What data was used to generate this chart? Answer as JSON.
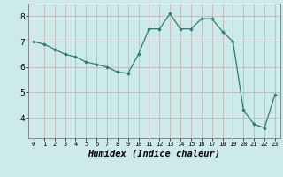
{
  "x": [
    0,
    1,
    2,
    3,
    4,
    5,
    6,
    7,
    8,
    9,
    10,
    11,
    12,
    13,
    14,
    15,
    16,
    17,
    18,
    19,
    20,
    21,
    22,
    23
  ],
  "y": [
    7.0,
    6.9,
    6.7,
    6.5,
    6.4,
    6.2,
    6.1,
    6.0,
    5.8,
    5.75,
    6.5,
    7.5,
    7.5,
    8.1,
    7.5,
    7.5,
    7.9,
    7.9,
    7.4,
    7.0,
    4.3,
    3.75,
    3.6,
    4.9
  ],
  "xlabel": "Humidex (Indice chaleur)",
  "xlim": [
    -0.5,
    23.5
  ],
  "ylim": [
    3.2,
    8.5
  ],
  "yticks": [
    4,
    5,
    6,
    7,
    8
  ],
  "xticks": [
    0,
    1,
    2,
    3,
    4,
    5,
    6,
    7,
    8,
    9,
    10,
    11,
    12,
    13,
    14,
    15,
    16,
    17,
    18,
    19,
    20,
    21,
    22,
    23
  ],
  "line_color": "#2e7d6e",
  "marker": "D",
  "marker_size": 1.8,
  "bg_color": "#cceaea",
  "grid_color": "#c8a8a8",
  "xlabel_fontsize": 7.5,
  "tick_fontsize_x": 5.0,
  "tick_fontsize_y": 6.5
}
